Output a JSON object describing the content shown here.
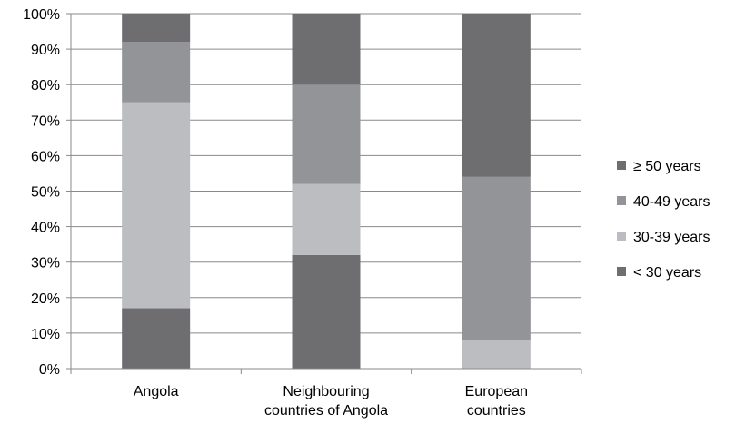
{
  "chart_data": {
    "type": "bar",
    "stacked": true,
    "percent": true,
    "categories": [
      [
        "Angola"
      ],
      [
        "Neighbouring",
        "countries of Angola"
      ],
      [
        "European",
        "countries"
      ]
    ],
    "series": [
      {
        "name": "< 30 years",
        "color": "#6e6e70",
        "values": [
          17,
          32,
          0
        ]
      },
      {
        "name": "30-39 years",
        "color": "#bcbdc0",
        "values": [
          58,
          20,
          8
        ]
      },
      {
        "name": "40-49 years",
        "color": "#939497",
        "values": [
          17,
          28,
          46
        ]
      },
      {
        "name": "≥ 50 years",
        "color": "#6e6e70",
        "values": [
          8,
          20,
          46
        ]
      }
    ],
    "ylim": [
      0,
      100
    ],
    "yticks": [
      "0%",
      "10%",
      "20%",
      "30%",
      "40%",
      "50%",
      "60%",
      "70%",
      "80%",
      "90%",
      "100%"
    ],
    "grid": true,
    "legend_position": "right"
  }
}
